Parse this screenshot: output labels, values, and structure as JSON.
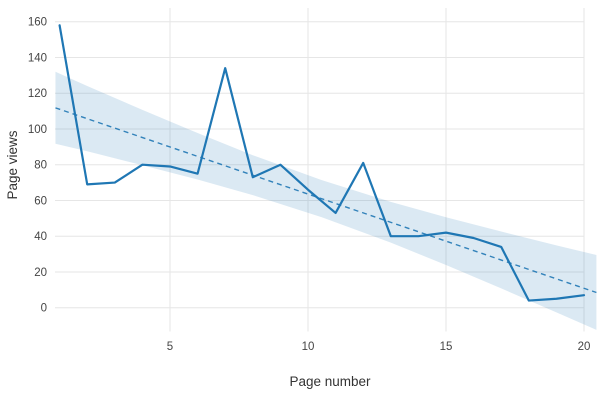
{
  "chart_data": {
    "type": "line",
    "title": "",
    "xlabel": "Page number",
    "ylabel": "Page views",
    "x": [
      1,
      2,
      3,
      4,
      5,
      6,
      7,
      8,
      9,
      10,
      11,
      12,
      13,
      14,
      15,
      16,
      17,
      18,
      19,
      20
    ],
    "series": [
      {
        "name": "Page views",
        "values": [
          158,
          69,
          70,
          80,
          79,
          75,
          134,
          73,
          80,
          66,
          53,
          81,
          40,
          40,
          42,
          39,
          34,
          4,
          5,
          7
        ],
        "color": "#1f77b4",
        "line_style": "solid"
      }
    ],
    "trend_line": {
      "name": "Linear trend",
      "line_style": "dashed",
      "color": "#1f77b4",
      "x": [
        0.85,
        20.45
      ],
      "y": [
        111.8,
        8.5
      ]
    },
    "confidence_band": {
      "color": "#1f77b4",
      "opacity": 0.16,
      "x": [
        0.85,
        2,
        4,
        6,
        8,
        10.5,
        13,
        15,
        17,
        19,
        20.45
      ],
      "upper": [
        132,
        124,
        110.7,
        97.7,
        85.3,
        71.4,
        59.2,
        50.6,
        42.6,
        34.9,
        29.5
      ],
      "lower": [
        91.7,
        87.5,
        79.7,
        71.7,
        63,
        50.6,
        36.4,
        23.9,
        10.8,
        -2.6,
        -12.4
      ]
    },
    "x_ticks": [
      5,
      10,
      15,
      20
    ],
    "y_ticks": [
      0,
      20,
      40,
      60,
      80,
      100,
      120,
      140,
      160
    ],
    "xlim": [
      0.83,
      20.45
    ],
    "ylim": [
      -13.3,
      167.6
    ],
    "grid": "on",
    "legend": "none",
    "colors": {
      "line": "#1f77b4",
      "grid": "#e6e6e6",
      "tick_label": "#454545",
      "axis_title": "#333333",
      "background": "#ffffff"
    }
  }
}
